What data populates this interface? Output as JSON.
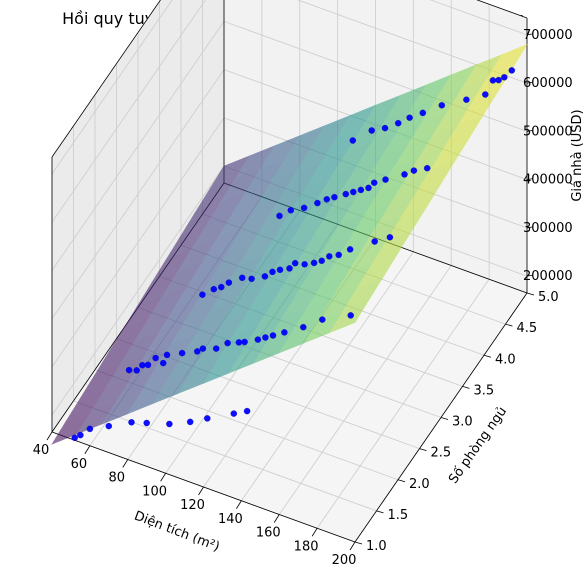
{
  "chart_data": {
    "type": "scatter",
    "title": "Hồi quy tuyến tính bội: Giá nhà theo diện tích & số phòng",
    "xlabel": "Diện tích (m²)",
    "ylabel": "Số phòng ngủ",
    "zlabel": "Giá nhà (USD)",
    "xlim": [
      40,
      200
    ],
    "ylim": [
      1,
      5
    ],
    "zlim": [
      200000,
      700000
    ],
    "x_ticks": [
      "40",
      "60",
      "80",
      "100",
      "120",
      "140",
      "160",
      "180",
      "200"
    ],
    "y_ticks": [
      "1.0",
      "1.5",
      "2.0",
      "2.5",
      "3.0",
      "3.5",
      "4.0",
      "4.5",
      "5.0"
    ],
    "z_ticks": [
      "200000",
      "300000",
      "400000",
      "500000",
      "600000",
      "700000"
    ],
    "grid": true,
    "colors": {
      "points": "#0000ff",
      "surface_colormap": "viridis"
    },
    "regression_plane": {
      "intercept": 5000,
      "area_coef": 3000,
      "rooms_coef": 15000
    },
    "points": [
      {
        "x": 52,
        "y": 1,
        "z": 170000
      },
      {
        "x": 55,
        "y": 1,
        "z": 180000
      },
      {
        "x": 58,
        "y": 2,
        "z": 190000
      },
      {
        "x": 60,
        "y": 1,
        "z": 200000
      },
      {
        "x": 62,
        "y": 2,
        "z": 195000
      },
      {
        "x": 65,
        "y": 2,
        "z": 210000
      },
      {
        "x": 68,
        "y": 2,
        "z": 215000
      },
      {
        "x": 70,
        "y": 1,
        "z": 220000
      },
      {
        "x": 72,
        "y": 2,
        "z": 235000
      },
      {
        "x": 74,
        "y": 3,
        "z": 240000
      },
      {
        "x": 76,
        "y": 2,
        "z": 230000
      },
      {
        "x": 78,
        "y": 2,
        "z": 250000
      },
      {
        "x": 80,
        "y": 3,
        "z": 260000
      },
      {
        "x": 82,
        "y": 1,
        "z": 245000
      },
      {
        "x": 84,
        "y": 3,
        "z": 270000
      },
      {
        "x": 86,
        "y": 2,
        "z": 265000
      },
      {
        "x": 88,
        "y": 3,
        "z": 285000
      },
      {
        "x": 90,
        "y": 1,
        "z": 255000
      },
      {
        "x": 92,
        "y": 4,
        "z": 300000
      },
      {
        "x": 94,
        "y": 2,
        "z": 280000
      },
      {
        "x": 95,
        "y": 3,
        "z": 305000
      },
      {
        "x": 97,
        "y": 2,
        "z": 290000
      },
      {
        "x": 98,
        "y": 4,
        "z": 320000
      },
      {
        "x": 100,
        "y": 3,
        "z": 310000
      },
      {
        "x": 102,
        "y": 1,
        "z": 270000
      },
      {
        "x": 104,
        "y": 2,
        "z": 300000
      },
      {
        "x": 105,
        "y": 4,
        "z": 335000
      },
      {
        "x": 107,
        "y": 3,
        "z": 325000
      },
      {
        "x": 108,
        "y": 5,
        "z": 350000
      },
      {
        "x": 110,
        "y": 2,
        "z": 320000
      },
      {
        "x": 111,
        "y": 3,
        "z": 340000
      },
      {
        "x": 112,
        "y": 4,
        "z": 355000
      },
      {
        "x": 113,
        "y": 1,
        "z": 290000
      },
      {
        "x": 115,
        "y": 3,
        "z": 350000
      },
      {
        "x": 116,
        "y": 2,
        "z": 330000
      },
      {
        "x": 117,
        "y": 4,
        "z": 370000
      },
      {
        "x": 118,
        "y": 5,
        "z": 385000
      },
      {
        "x": 119,
        "y": 2,
        "z": 335000
      },
      {
        "x": 120,
        "y": 3,
        "z": 360000
      },
      {
        "x": 121,
        "y": 4,
        "z": 380000
      },
      {
        "x": 122,
        "y": 1,
        "z": 310000
      },
      {
        "x": 123,
        "y": 3,
        "z": 375000
      },
      {
        "x": 125,
        "y": 5,
        "z": 400000
      },
      {
        "x": 126,
        "y": 2,
        "z": 350000
      },
      {
        "x": 127,
        "y": 4,
        "z": 395000
      },
      {
        "x": 128,
        "y": 3,
        "z": 380000
      },
      {
        "x": 130,
        "y": 2,
        "z": 360000
      },
      {
        "x": 131,
        "y": 4,
        "z": 405000
      },
      {
        "x": 132,
        "y": 5,
        "z": 420000
      },
      {
        "x": 133,
        "y": 3,
        "z": 390000
      },
      {
        "x": 134,
        "y": 2,
        "z": 370000
      },
      {
        "x": 135,
        "y": 4,
        "z": 415000
      },
      {
        "x": 136,
        "y": 1,
        "z": 340000
      },
      {
        "x": 137,
        "y": 3,
        "z": 400000
      },
      {
        "x": 138,
        "y": 5,
        "z": 440000
      },
      {
        "x": 139,
        "y": 4,
        "z": 425000
      },
      {
        "x": 140,
        "y": 2,
        "z": 385000
      },
      {
        "x": 141,
        "y": 3,
        "z": 415000
      },
      {
        "x": 142,
        "y": 4,
        "z": 440000
      },
      {
        "x": 143,
        "y": 1,
        "z": 355000
      },
      {
        "x": 145,
        "y": 5,
        "z": 460000
      },
      {
        "x": 146,
        "y": 3,
        "z": 425000
      },
      {
        "x": 148,
        "y": 4,
        "z": 455000
      },
      {
        "x": 150,
        "y": 2,
        "z": 410000
      },
      {
        "x": 152,
        "y": 3,
        "z": 445000
      },
      {
        "x": 155,
        "y": 5,
        "z": 490000
      },
      {
        "x": 158,
        "y": 4,
        "z": 480000
      },
      {
        "x": 160,
        "y": 2,
        "z": 440000
      },
      {
        "x": 163,
        "y": 4,
        "z": 495000
      },
      {
        "x": 165,
        "y": 3,
        "z": 480000
      },
      {
        "x": 168,
        "y": 5,
        "z": 520000
      },
      {
        "x": 170,
        "y": 4,
        "z": 510000
      },
      {
        "x": 173,
        "y": 3,
        "z": 500000
      },
      {
        "x": 175,
        "y": 2,
        "z": 470000
      },
      {
        "x": 178,
        "y": 5,
        "z": 545000
      },
      {
        "x": 182,
        "y": 5,
        "z": 580000
      },
      {
        "x": 185,
        "y": 5,
        "z": 585000
      },
      {
        "x": 188,
        "y": 5,
        "z": 595000
      },
      {
        "x": 192,
        "y": 5,
        "z": 615000
      }
    ]
  }
}
